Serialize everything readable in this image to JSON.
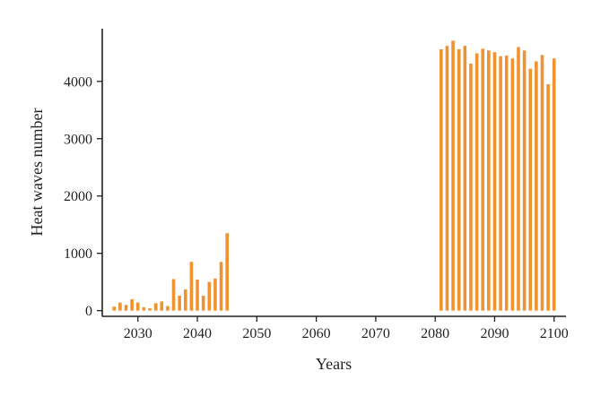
{
  "chart_data": {
    "type": "bar",
    "title": "",
    "xlabel": "Years",
    "ylabel": "Heat waves number",
    "xlim": [
      2024,
      2102
    ],
    "ylim": [
      -100,
      4920
    ],
    "xticks": [
      2030,
      2040,
      2050,
      2060,
      2070,
      2080,
      2090,
      2100
    ],
    "yticks": [
      0,
      1000,
      2000,
      3000,
      4000
    ],
    "grid": false,
    "legend": "none",
    "bar_color": "#f0922f",
    "series": [
      {
        "x": [
          2026,
          2027,
          2028,
          2029,
          2030,
          2031,
          2032,
          2033,
          2034,
          2035,
          2036,
          2037,
          2038,
          2039,
          2040,
          2041,
          2042,
          2043,
          2044,
          2045,
          2081,
          2082,
          2083,
          2084,
          2085,
          2086,
          2087,
          2088,
          2089,
          2090,
          2091,
          2092,
          2093,
          2094,
          2095,
          2096,
          2097,
          2098,
          2099,
          2100
        ],
        "values": [
          70,
          140,
          100,
          200,
          140,
          60,
          40,
          130,
          160,
          80,
          550,
          260,
          370,
          850,
          540,
          260,
          500,
          560,
          850,
          1350,
          4560,
          4620,
          4710,
          4560,
          4620,
          4310,
          4490,
          4570,
          4540,
          4510,
          4440,
          4450,
          4400,
          4600,
          4540,
          4220,
          4350,
          4460,
          3950,
          4400
        ]
      }
    ]
  }
}
